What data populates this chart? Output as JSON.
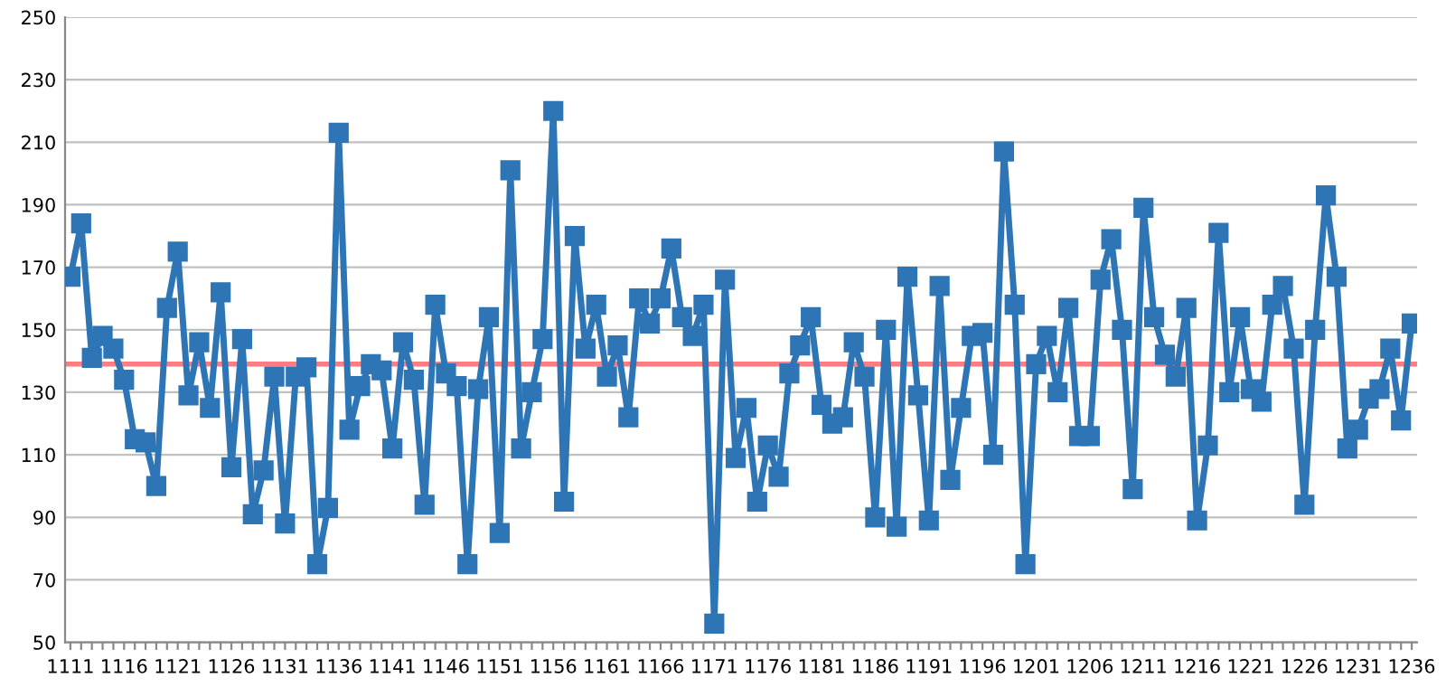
{
  "chart_data": {
    "type": "line",
    "categories": [
      "1111",
      null,
      null,
      null,
      null,
      "1116",
      null,
      null,
      null,
      null,
      "1121",
      null,
      null,
      null,
      null,
      "1126",
      null,
      null,
      null,
      null,
      "1131",
      null,
      null,
      null,
      null,
      "1136",
      null,
      null,
      null,
      null,
      "1141",
      null,
      null,
      null,
      null,
      "1146",
      null,
      null,
      null,
      null,
      "1151",
      null,
      null,
      null,
      null,
      "1156",
      null,
      null,
      null,
      null,
      "1161",
      null,
      null,
      null,
      null,
      "1166",
      null,
      null,
      null,
      null,
      "1171",
      null,
      null,
      null,
      null,
      "1176",
      null,
      null,
      null,
      null,
      "1181",
      null,
      null,
      null,
      null,
      "1186",
      null,
      null,
      null,
      null,
      "1191",
      null,
      null,
      null,
      null,
      "1196",
      null,
      null,
      null,
      null,
      "1201",
      null,
      null,
      null,
      null,
      "1206",
      null,
      null,
      null,
      null,
      "1211",
      null,
      null,
      null,
      null,
      "1216",
      null,
      null,
      null,
      null,
      "1221",
      null,
      null,
      null,
      null,
      "1226",
      null,
      null,
      null,
      null,
      "1231",
      null,
      null,
      null,
      null,
      "1236"
    ],
    "series": [
      {
        "color": "#2e75b6",
        "values": [
          167,
          184,
          141,
          148,
          144,
          134,
          115,
          114,
          100,
          157,
          175,
          129,
          146,
          125,
          162,
          106,
          147,
          91,
          105,
          135,
          88,
          135,
          138,
          75,
          93,
          213,
          118,
          132,
          139,
          137,
          112,
          146,
          134,
          94,
          158,
          136,
          132,
          75,
          131,
          154,
          85,
          201,
          112,
          130,
          147,
          220,
          95,
          180,
          144,
          158,
          135,
          145,
          122,
          160,
          152,
          160,
          176,
          154,
          148,
          158,
          56,
          166,
          109,
          125,
          95,
          113,
          103,
          136,
          145,
          154,
          126,
          120,
          122,
          146,
          135,
          90,
          150,
          87,
          167,
          129,
          89,
          164,
          102,
          125,
          148,
          149,
          110,
          207,
          158,
          75,
          139,
          148,
          130,
          157,
          116,
          116,
          166,
          179,
          150,
          99,
          189,
          154,
          142,
          135,
          157,
          89,
          113,
          181,
          130,
          154,
          131,
          127,
          158,
          164,
          144,
          94,
          150,
          193,
          167,
          112,
          118,
          128,
          131,
          144,
          121,
          152
        ]
      }
    ],
    "ylim": [
      50,
      250
    ],
    "yticks": [
      50,
      70,
      90,
      110,
      130,
      150,
      170,
      190,
      210,
      230,
      250
    ],
    "grid": "y",
    "marker": "square",
    "line_style": "solid",
    "ref_lines": [
      {
        "axis": "y",
        "value": 139,
        "color": "#ff7c80"
      }
    ]
  }
}
